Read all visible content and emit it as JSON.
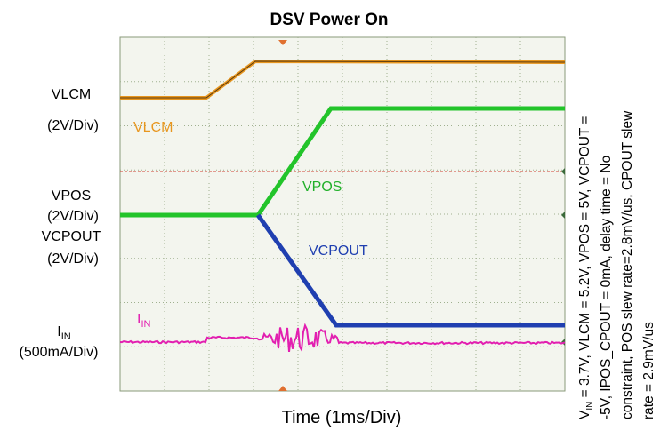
{
  "title": "DSV Power On",
  "x_label": "Time (1ms/Div)",
  "left_labels": {
    "vlcm": {
      "name": "VLCM",
      "scale": "(2V/Div)"
    },
    "vpos": {
      "name": "VPOS",
      "scale": "(2V/Div)"
    },
    "vcpout": {
      "name": "VCPOUT",
      "scale": "(2V/Div)"
    },
    "iin": {
      "main": "I",
      "sub": "IN",
      "scale": "(500mA/Div)"
    }
  },
  "trace_labels": {
    "vlcm": "VLCM",
    "vpos": "VPOS",
    "vcpout": "VCPOUT",
    "iin": {
      "main": "I",
      "sub": "IN"
    }
  },
  "conditions": {
    "first": {
      "main": "V",
      "sub": "IN",
      "rest": " = 3.7V,  VLCM = 5.2V,  VPOS = 5V,  VCPOUT ="
    },
    "lines": [
      "-5V, IPOS_CPOUT = 0mA, delay time = No",
      "constraint, POS slew rate=2.8mV/us, CPOUT slew",
      "rate = 2.9mV/us"
    ]
  }
}
